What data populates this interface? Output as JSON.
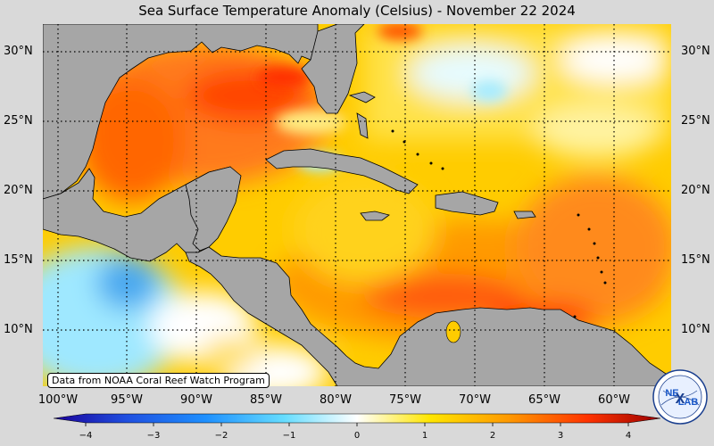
{
  "title": "Sea Surface Temperature Anomaly (Celsius) - November 22 2024",
  "lat_labels": [
    "30°N",
    "25°N",
    "20°N",
    "15°N",
    "10°N"
  ],
  "lon_labels": [
    "100°W",
    "95°W",
    "90°W",
    "85°W",
    "80°W",
    "75°W",
    "70°W",
    "65°W",
    "60°W"
  ],
  "credit": "Data from NOAA Coral Reef Watch Program",
  "colorbar": {
    "ticks": [
      "−4",
      "−3",
      "−2",
      "−1",
      "0",
      "1",
      "2",
      "3",
      "4"
    ],
    "range": [
      -4,
      4
    ]
  },
  "logo_text": [
    "NE",
    "LAB"
  ],
  "colors": {
    "land": "#a6a6a6",
    "background": "#d9d9d9",
    "warm_strong": "#ff3300",
    "warm": "#ff8c00",
    "mild": "#ffd700",
    "neutral": "#ffffff",
    "cool": "#80e0ff",
    "cold": "#1f5bd6"
  }
}
